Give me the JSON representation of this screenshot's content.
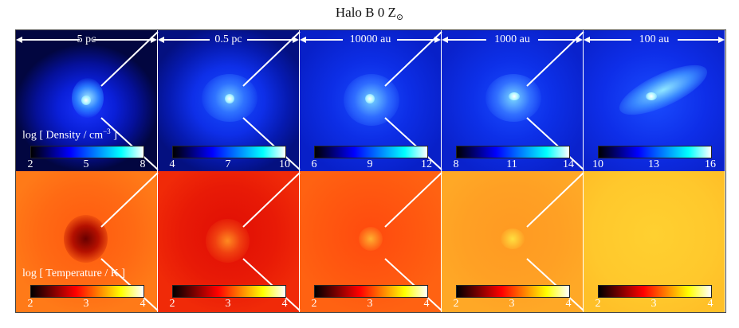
{
  "figure": {
    "title": "Halo B   0 Z",
    "title_subscript": "⊙"
  },
  "scales": [
    "5 pc",
    "0.5 pc",
    "10000 au",
    "1000 au",
    "100 au"
  ],
  "density": {
    "label": "log [ Density / cm",
    "label_exp": "−3",
    "label_end": " ]",
    "panels": [
      {
        "ticks": [
          "2",
          "5",
          "8"
        ]
      },
      {
        "ticks": [
          "4",
          "7",
          "10"
        ]
      },
      {
        "ticks": [
          "6",
          "9",
          "12"
        ]
      },
      {
        "ticks": [
          "8",
          "11",
          "14"
        ]
      },
      {
        "ticks": [
          "10",
          "13",
          "16"
        ]
      }
    ]
  },
  "temperature": {
    "label": "log [ Temperature / K ]",
    "panels": [
      {
        "ticks": [
          "2",
          "3",
          "4"
        ]
      },
      {
        "ticks": [
          "2",
          "3",
          "4"
        ]
      },
      {
        "ticks": [
          "2",
          "3",
          "4"
        ]
      },
      {
        "ticks": [
          "2",
          "3",
          "4"
        ]
      },
      {
        "ticks": [
          "2",
          "3",
          "4"
        ]
      }
    ]
  },
  "colors": {
    "density_map": [
      "#000000",
      "#0000ff",
      "#00ffff",
      "#ffffff"
    ],
    "temperature_map": [
      "#000000",
      "#ff0000",
      "#ffff00",
      "#ffffff"
    ]
  }
}
